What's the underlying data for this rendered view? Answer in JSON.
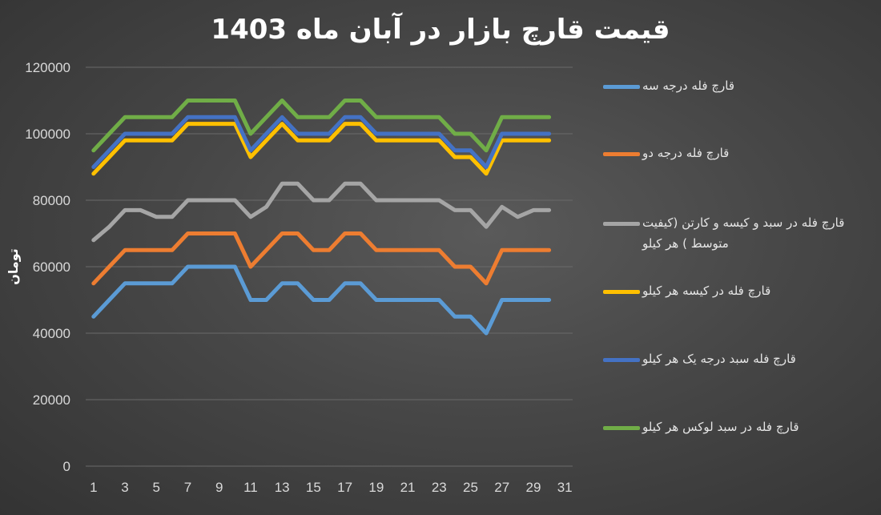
{
  "chart_data": {
    "type": "line",
    "title": "قیمت قارچ بازار در آبان ماه 1403",
    "xlabel": "",
    "ylabel": "تومان",
    "ylim": [
      0,
      120000
    ],
    "yticks": [
      "0",
      "20000",
      "40000",
      "60000",
      "80000",
      "100000",
      "120000"
    ],
    "xticks": [
      "1",
      "3",
      "5",
      "7",
      "9",
      "11",
      "13",
      "15",
      "17",
      "19",
      "21",
      "23",
      "25",
      "27",
      "29",
      "31"
    ],
    "x": [
      1,
      2,
      3,
      4,
      5,
      6,
      7,
      8,
      9,
      10,
      11,
      12,
      13,
      14,
      15,
      16,
      17,
      18,
      19,
      20,
      21,
      22,
      23,
      24,
      25,
      26,
      27,
      28,
      29,
      30
    ],
    "legend_position": "right",
    "grid": true,
    "series": [
      {
        "name": "قارچ فله درجه سه",
        "color": "#5b9bd5",
        "values": [
          45000,
          50000,
          55000,
          55000,
          55000,
          55000,
          60000,
          60000,
          60000,
          60000,
          50000,
          50000,
          55000,
          55000,
          50000,
          50000,
          55000,
          55000,
          50000,
          50000,
          50000,
          50000,
          50000,
          45000,
          45000,
          40000,
          50000,
          50000,
          50000,
          50000
        ]
      },
      {
        "name": "قارچ فله درجه دو",
        "color": "#ed7d31",
        "values": [
          55000,
          60000,
          65000,
          65000,
          65000,
          65000,
          70000,
          70000,
          70000,
          70000,
          60000,
          65000,
          70000,
          70000,
          65000,
          65000,
          70000,
          70000,
          65000,
          65000,
          65000,
          65000,
          65000,
          60000,
          60000,
          55000,
          65000,
          65000,
          65000,
          65000
        ]
      },
      {
        "name": "قارچ فله در سبد و کیسه و کارتن (کیفیت متوسط ) هر کیلو",
        "color": "#a5a5a5",
        "values": [
          68000,
          72000,
          77000,
          77000,
          75000,
          75000,
          80000,
          80000,
          80000,
          80000,
          75000,
          78000,
          85000,
          85000,
          80000,
          80000,
          85000,
          85000,
          80000,
          80000,
          80000,
          80000,
          80000,
          77000,
          77000,
          72000,
          78000,
          75000,
          77000,
          77000
        ]
      },
      {
        "name": "قارچ فله در کیسه هر کیلو",
        "color": "#ffc000",
        "values": [
          88000,
          93000,
          98000,
          98000,
          98000,
          98000,
          103000,
          103000,
          103000,
          103000,
          93000,
          98000,
          103000,
          98000,
          98000,
          98000,
          103000,
          103000,
          98000,
          98000,
          98000,
          98000,
          98000,
          93000,
          93000,
          88000,
          98000,
          98000,
          98000,
          98000
        ]
      },
      {
        "name": "قارچ فله سبد درجه یک هر کیلو",
        "color": "#4472c4",
        "values": [
          90000,
          95000,
          100000,
          100000,
          100000,
          100000,
          105000,
          105000,
          105000,
          105000,
          95000,
          100000,
          105000,
          100000,
          100000,
          100000,
          105000,
          105000,
          100000,
          100000,
          100000,
          100000,
          100000,
          95000,
          95000,
          90000,
          100000,
          100000,
          100000,
          100000
        ]
      },
      {
        "name": "قارچ فله در سبد لوکس هر کیلو",
        "color": "#70ad47",
        "values": [
          95000,
          100000,
          105000,
          105000,
          105000,
          105000,
          110000,
          110000,
          110000,
          110000,
          100000,
          105000,
          110000,
          105000,
          105000,
          105000,
          110000,
          110000,
          105000,
          105000,
          105000,
          105000,
          105000,
          100000,
          100000,
          95000,
          105000,
          105000,
          105000,
          105000
        ]
      }
    ]
  }
}
